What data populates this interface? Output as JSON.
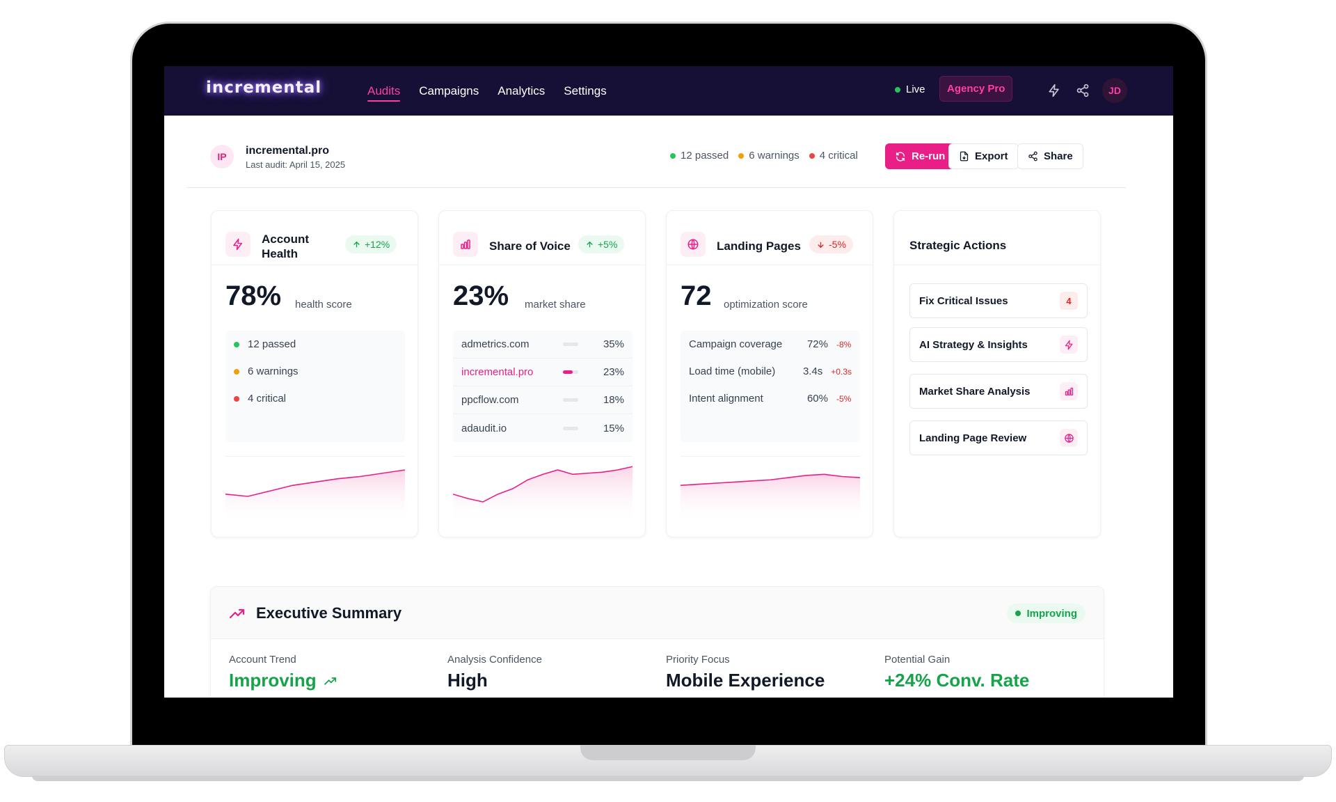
{
  "brand": {
    "logo": "incremental",
    "accent": "#e91e87",
    "nav_bg": "#161036"
  },
  "nav": {
    "links": [
      {
        "label": "Audits",
        "active": true
      },
      {
        "label": "Campaigns",
        "active": false
      },
      {
        "label": "Analytics",
        "active": false
      },
      {
        "label": "Settings",
        "active": false
      }
    ],
    "live_label": "Live",
    "plan_badge": "Agency Pro",
    "icons": [
      "bolt-icon",
      "share-icon"
    ],
    "avatar_initials": "JD"
  },
  "site": {
    "initials": "IP",
    "name": "incremental.pro",
    "last_audit": "Last audit: April 15, 2025",
    "stats": {
      "passed": "12 passed",
      "warnings": "6 warnings",
      "critical": "4 critical"
    },
    "buttons": {
      "rerun": "Re-run",
      "export": "Export",
      "share": "Share"
    }
  },
  "cards": {
    "health": {
      "title": "Account Health",
      "title_line1": "Account",
      "title_line2": "Health",
      "delta": "+12%",
      "score": "78%",
      "score_label": "health score",
      "statuses": [
        {
          "label": "12 passed",
          "color": "#22c55e"
        },
        {
          "label": "6 warnings",
          "color": "#f59e0b"
        },
        {
          "label": "4 critical",
          "color": "#ef4444"
        }
      ],
      "trend": [
        0.42,
        0.38,
        0.48,
        0.58,
        0.64,
        0.7,
        0.74,
        0.8,
        0.86
      ]
    },
    "sov": {
      "title": "Share of Voice",
      "delta": "+5%",
      "score": "23%",
      "score_label": "market share",
      "competitors": [
        {
          "name": "admetrics.com",
          "value": "35%",
          "share": 0.35,
          "highlight": false
        },
        {
          "name": "incremental.pro",
          "value": "23%",
          "share": 0.23,
          "highlight": true
        },
        {
          "name": "ppcflow.com",
          "value": "18%",
          "share": 0.18,
          "highlight": false
        },
        {
          "name": "adaudit.io",
          "value": "15%",
          "share": 0.15,
          "highlight": false
        }
      ],
      "trend": [
        0.42,
        0.34,
        0.28,
        0.42,
        0.52,
        0.68,
        0.78,
        0.86,
        0.78,
        0.8,
        0.82,
        0.86,
        0.92
      ]
    },
    "lp": {
      "title": "Landing Pages",
      "delta": "-5%",
      "score": "72",
      "score_label": "optimization score",
      "metrics": [
        {
          "name": "Campaign coverage",
          "value": "72%",
          "delta": "-8%"
        },
        {
          "name": "Load time (mobile)",
          "value": "3.4s",
          "delta": "+0.3s"
        },
        {
          "name": "Intent alignment",
          "value": "60%",
          "delta": "-5%"
        }
      ],
      "trend": [
        0.58,
        0.6,
        0.62,
        0.64,
        0.66,
        0.68,
        0.72,
        0.76,
        0.78,
        0.74,
        0.72
      ]
    }
  },
  "strategic": {
    "title": "Strategic Actions",
    "items": [
      {
        "label": "Fix Critical Issues",
        "trail": "4",
        "icon": ""
      },
      {
        "label": "AI Strategy & Insights",
        "trail": "",
        "icon": "bolt-icon"
      },
      {
        "label": "Market Share Analysis",
        "trail": "",
        "icon": "bar-chart-icon"
      },
      {
        "label": "Landing Page Review",
        "trail": "",
        "icon": "globe-icon"
      }
    ]
  },
  "executive": {
    "title": "Executive Summary",
    "badge": "Improving",
    "cols": [
      {
        "label": "Account Trend",
        "value": "Improving",
        "green": true,
        "icon": "trend-up-icon"
      },
      {
        "label": "Analysis Confidence",
        "value": "High",
        "green": false,
        "icon": ""
      },
      {
        "label": "Priority Focus",
        "value": "Mobile Experience",
        "green": false,
        "icon": ""
      },
      {
        "label": "Potential Gain",
        "value": "+24% Conv. Rate",
        "green": true,
        "icon": ""
      }
    ]
  }
}
